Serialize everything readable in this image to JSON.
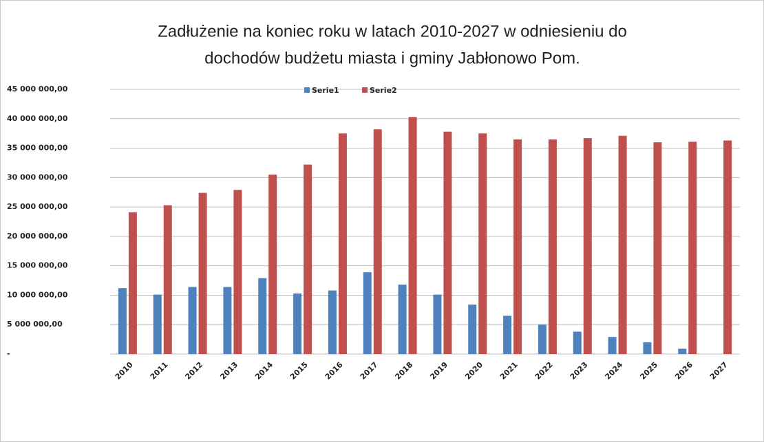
{
  "chart_data": {
    "type": "bar",
    "title": [
      "Zadłużenie na koniec roku w latach 2010-2027 w odniesieniu do",
      "dochodów budżetu miasta i gminy Jabłonowo Pom."
    ],
    "categories": [
      "2010",
      "2011",
      "2012",
      "2013",
      "2014",
      "2015",
      "2016",
      "2017",
      "2018",
      "2019",
      "2020",
      "2021",
      "2022",
      "2023",
      "2024",
      "2025",
      "2026",
      "2027"
    ],
    "series": [
      {
        "name": "Serie1",
        "color": "#4f81bd",
        "values": [
          11200000,
          10100000,
          11400000,
          11400000,
          12900000,
          10300000,
          10800000,
          13900000,
          11800000,
          10100000,
          8400000,
          6500000,
          5000000,
          3800000,
          2900000,
          2000000,
          900000,
          0
        ]
      },
      {
        "name": "Serie2",
        "color": "#c0504d",
        "values": [
          24100000,
          25300000,
          27400000,
          27900000,
          30500000,
          32200000,
          37500000,
          38200000,
          40300000,
          37800000,
          37500000,
          36500000,
          36500000,
          36700000,
          37100000,
          36000000,
          36100000,
          36300000
        ]
      }
    ],
    "ylim": [
      0,
      45000000
    ],
    "yticks": [
      {
        "value": 0,
        "label": "-"
      },
      {
        "value": 5000000,
        "label": "5 000 000,00"
      },
      {
        "value": 10000000,
        "label": "10 000 000,00"
      },
      {
        "value": 15000000,
        "label": "15 000 000,00"
      },
      {
        "value": 20000000,
        "label": "20 000 000,00"
      },
      {
        "value": 25000000,
        "label": "25 000 000,00"
      },
      {
        "value": 30000000,
        "label": "30 000 000,00"
      },
      {
        "value": 35000000,
        "label": "35 000 000,00"
      },
      {
        "value": 40000000,
        "label": "40 000 000,00"
      },
      {
        "value": 45000000,
        "label": "45 000 000,00"
      }
    ],
    "grid": true,
    "legend": "top"
  }
}
